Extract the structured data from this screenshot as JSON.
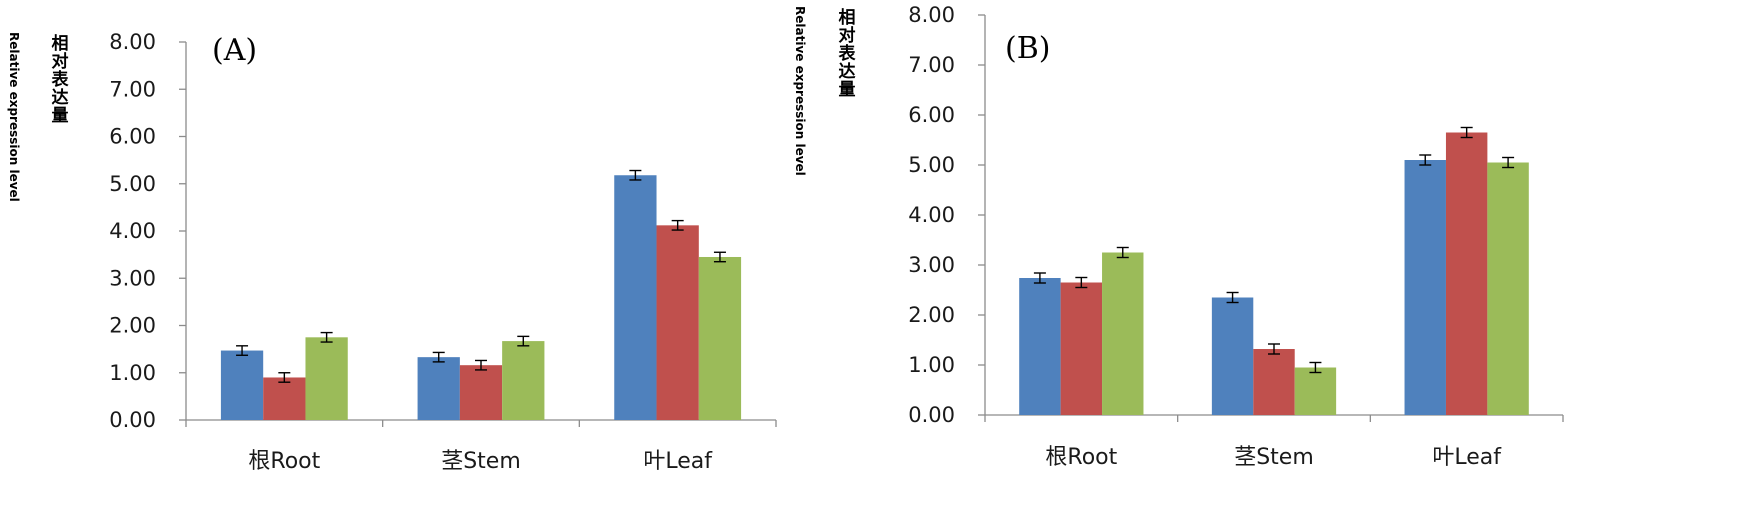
{
  "chart_data": [
    {
      "type": "bar",
      "panel_label": "(A)",
      "ylabel_zh": "相对表达量",
      "ylabel_en": "Relative expression level",
      "categories": [
        "根Root",
        "茎Stem",
        "叶Leaf"
      ],
      "ylim": [
        0,
        8
      ],
      "yticks": [
        "0.00",
        "1.00",
        "2.00",
        "3.00",
        "4.00",
        "5.00",
        "6.00",
        "7.00",
        "8.00"
      ],
      "grid": false,
      "series": [
        {
          "color": "#4f81bd",
          "values": [
            1.47,
            1.33,
            5.18
          ],
          "errors": [
            0.1,
            0.1,
            0.1
          ]
        },
        {
          "color": "#c0504d",
          "values": [
            0.9,
            1.16,
            4.12
          ],
          "errors": [
            0.1,
            0.1,
            0.1
          ]
        },
        {
          "color": "#9bbb59",
          "values": [
            1.75,
            1.67,
            3.45
          ],
          "errors": [
            0.1,
            0.1,
            0.1
          ]
        }
      ]
    },
    {
      "type": "bar",
      "panel_label": "(B)",
      "ylabel_zh": "相对表达量",
      "ylabel_en": "Relative expression level",
      "categories": [
        "根Root",
        "茎Stem",
        "叶Leaf"
      ],
      "ylim": [
        0,
        8
      ],
      "yticks": [
        "0.00",
        "1.00",
        "2.00",
        "3.00",
        "4.00",
        "5.00",
        "6.00",
        "7.00",
        "8.00"
      ],
      "grid": false,
      "series": [
        {
          "color": "#4f81bd",
          "values": [
            2.74,
            2.35,
            5.1
          ],
          "errors": [
            0.1,
            0.1,
            0.1
          ]
        },
        {
          "color": "#c0504d",
          "values": [
            2.65,
            1.32,
            5.65
          ],
          "errors": [
            0.1,
            0.1,
            0.1
          ]
        },
        {
          "color": "#9bbb59",
          "values": [
            3.25,
            0.95,
            5.05
          ],
          "errors": [
            0.1,
            0.1,
            0.1
          ]
        }
      ]
    }
  ]
}
